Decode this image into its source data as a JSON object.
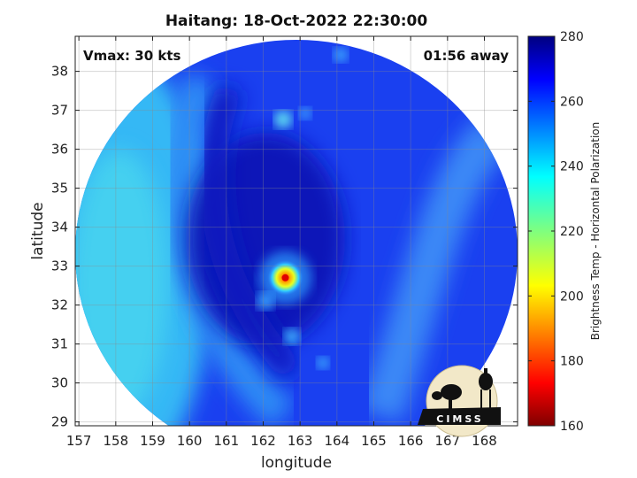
{
  "chart_data": {
    "type": "heatmap",
    "title": "Haitang: 18-Oct-2022 22:30:00",
    "xlabel": "longitude",
    "ylabel": "latitude",
    "xlim": [
      156.9,
      168.9
    ],
    "ylim": [
      28.9,
      38.9
    ],
    "x_ticks": [
      "157",
      "158",
      "159",
      "160",
      "161",
      "162",
      "163",
      "164",
      "165",
      "166",
      "167",
      "168"
    ],
    "y_ticks": [
      "29",
      "30",
      "31",
      "32",
      "33",
      "34",
      "35",
      "36",
      "37",
      "38"
    ],
    "grid": true,
    "annotations": {
      "vmax": "Vmax: 30 kts",
      "time_away": "01:56 away"
    },
    "center": {
      "lon": 162.6,
      "lat": 32.7
    },
    "colorbar": {
      "label": "Brightness Temp - Horizontal Polarization",
      "min": 160,
      "max": 280,
      "ticks": [
        "160",
        "180",
        "200",
        "220",
        "240",
        "260",
        "280"
      ],
      "colormap": "jet"
    }
  },
  "logo": {
    "text": "CIMSS"
  }
}
